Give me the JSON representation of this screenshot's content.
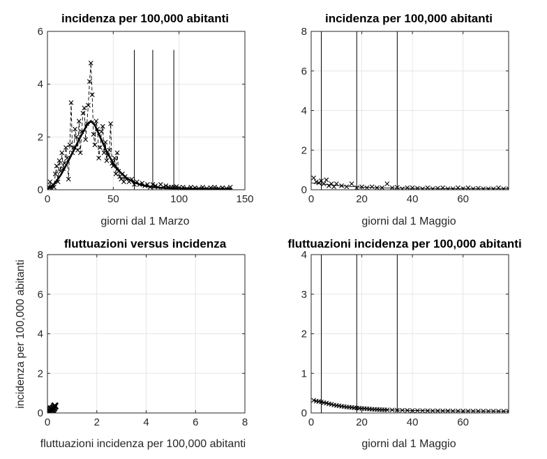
{
  "chart_data": [
    {
      "type": "line",
      "title": "incidenza per 100,000 abitanti",
      "xlabel": "giorni dal 1 Marzo",
      "ylabel": "",
      "xlim": [
        0,
        150
      ],
      "ylim": [
        0,
        6
      ],
      "xticks": [
        0,
        50,
        100,
        150
      ],
      "yticks": [
        0,
        2,
        4,
        6
      ],
      "grid": true,
      "vlines": [
        66,
        80,
        96
      ],
      "series": [
        {
          "style": "markers-x-dashed",
          "x": [
            1,
            2,
            3,
            4,
            5,
            6,
            7,
            8,
            9,
            10,
            11,
            12,
            13,
            14,
            15,
            16,
            17,
            18,
            19,
            20,
            21,
            22,
            23,
            24,
            25,
            26,
            27,
            28,
            29,
            30,
            31,
            32,
            33,
            34,
            35,
            36,
            37,
            38,
            39,
            40,
            41,
            42,
            43,
            44,
            45,
            46,
            47,
            48,
            49,
            50,
            51,
            52,
            53,
            54,
            55,
            56,
            57,
            58,
            59,
            60,
            62,
            64,
            66,
            68,
            70,
            72,
            74,
            76,
            78,
            80,
            82,
            84,
            86,
            88,
            90,
            92,
            94,
            96,
            98,
            100,
            103,
            106,
            109,
            112,
            115,
            118,
            121,
            124,
            127,
            130,
            133,
            136,
            139
          ],
          "y": [
            0.1,
            0.3,
            0.05,
            0.2,
            0.1,
            0.6,
            0.9,
            0.3,
            1.1,
            0.7,
            1.4,
            0.8,
            1.0,
            1.6,
            1.2,
            0.4,
            1.7,
            3.3,
            1.4,
            1.6,
            2.3,
            2.0,
            1.5,
            2.6,
            1.4,
            2.2,
            2.9,
            3.1,
            1.9,
            2.5,
            3.2,
            4.1,
            4.8,
            3.6,
            2.1,
            1.7,
            2.6,
            2.3,
            1.2,
            1.6,
            2.2,
            2.4,
            1.4,
            1.8,
            1.1,
            1.3,
            1.5,
            2.5,
            1.0,
            0.9,
            1.2,
            0.6,
            1.4,
            0.7,
            0.5,
            0.4,
            0.6,
            0.3,
            0.5,
            0.4,
            0.3,
            0.4,
            0.2,
            0.3,
            0.2,
            0.25,
            0.15,
            0.2,
            0.1,
            0.2,
            0.15,
            0.1,
            0.2,
            0.1,
            0.15,
            0.1,
            0.1,
            0.1,
            0.12,
            0.08,
            0.1,
            0.05,
            0.1,
            0.08,
            0.05,
            0.1,
            0.05,
            0.08,
            0.1,
            0.05,
            0.08,
            0.05,
            0.1
          ]
        },
        {
          "style": "thick-line",
          "x": [
            0,
            5,
            10,
            15,
            20,
            25,
            30,
            33,
            36,
            40,
            45,
            50,
            55,
            60,
            65,
            70,
            75,
            80,
            85,
            90,
            100,
            110,
            120,
            130,
            140
          ],
          "y": [
            0.02,
            0.2,
            0.55,
            1.0,
            1.5,
            2.0,
            2.45,
            2.6,
            2.45,
            2.0,
            1.45,
            1.0,
            0.68,
            0.45,
            0.3,
            0.2,
            0.14,
            0.1,
            0.08,
            0.06,
            0.05,
            0.04,
            0.04,
            0.03,
            0.03
          ]
        }
      ]
    },
    {
      "type": "line",
      "title": "incidenza per 100,000 abitanti",
      "xlabel": "giorni dal 1 Maggio",
      "ylabel": "",
      "xlim": [
        0,
        78
      ],
      "ylim": [
        0,
        8
      ],
      "xticks": [
        0,
        20,
        40,
        60
      ],
      "yticks": [
        0,
        2,
        4,
        6,
        8
      ],
      "grid": true,
      "vlines": [
        4,
        18,
        34
      ],
      "series": [
        {
          "style": "markers-x",
          "x": [
            1,
            2,
            3,
            4,
            5,
            6,
            7,
            8,
            9,
            10,
            12,
            14,
            16,
            18,
            20,
            22,
            24,
            26,
            28,
            30,
            32,
            34,
            36,
            38,
            40,
            42,
            44,
            46,
            48,
            50,
            52,
            54,
            56,
            58,
            60,
            62,
            64,
            66,
            68,
            70,
            72,
            74,
            76,
            78
          ],
          "y": [
            0.6,
            0.4,
            0.35,
            0.45,
            0.3,
            0.5,
            0.2,
            0.3,
            0.15,
            0.3,
            0.2,
            0.15,
            0.3,
            0.1,
            0.15,
            0.1,
            0.15,
            0.1,
            0.1,
            0.3,
            0.1,
            0.12,
            0.05,
            0.1,
            0.1,
            0.08,
            0.05,
            0.1,
            0.05,
            0.08,
            0.1,
            0.05,
            0.05,
            0.1,
            0.05,
            0.1,
            0.05,
            0.08,
            0.05,
            0.05,
            0.05,
            0.1,
            0.05,
            0.05
          ]
        },
        {
          "style": "thin-line",
          "x": [
            0,
            5,
            10,
            15,
            20,
            25,
            30,
            35,
            40,
            50,
            60,
            70,
            78
          ],
          "y": [
            0.35,
            0.28,
            0.22,
            0.17,
            0.13,
            0.11,
            0.09,
            0.08,
            0.07,
            0.06,
            0.05,
            0.05,
            0.05
          ]
        }
      ]
    },
    {
      "type": "scatter",
      "title": "fluttuazioni versus incidenza",
      "xlabel": "fluttuazioni incidenza per 100,000 abitanti",
      "ylabel": "incidenza per 100,000 abitanti",
      "xlim": [
        0,
        8
      ],
      "ylim": [
        0,
        8
      ],
      "xticks": [
        0,
        2,
        4,
        6,
        8
      ],
      "yticks": [
        0,
        2,
        4,
        6,
        8
      ],
      "grid": true,
      "vlines": [],
      "series": [
        {
          "style": "markers-x-bold",
          "x": [
            0.1,
            0.15,
            0.2,
            0.3,
            0.12,
            0.08,
            0.25
          ],
          "y": [
            0.1,
            0.2,
            0.15,
            0.35,
            0.05,
            0.12,
            0.25
          ]
        }
      ]
    },
    {
      "type": "line",
      "title": "fluttuazioni incidenza per 100,000 abitanti",
      "xlabel": "giorni dal 1 Maggio",
      "ylabel": "",
      "xlim": [
        0,
        78
      ],
      "ylim": [
        0,
        4
      ],
      "xticks": [
        0,
        20,
        40,
        60
      ],
      "yticks": [
        0,
        1,
        2,
        3,
        4
      ],
      "grid": true,
      "vlines": [
        4,
        18,
        34
      ],
      "series": [
        {
          "style": "markers-x-line",
          "x": [
            1,
            2,
            3,
            4,
            5,
            6,
            7,
            8,
            9,
            10,
            11,
            12,
            13,
            14,
            15,
            16,
            17,
            18,
            19,
            20,
            21,
            22,
            23,
            24,
            25,
            26,
            27,
            28,
            29,
            30,
            32,
            34,
            36,
            38,
            40,
            42,
            44,
            46,
            48,
            50,
            52,
            54,
            56,
            58,
            60,
            62,
            64,
            66,
            68,
            70,
            72,
            74,
            76,
            78
          ],
          "y": [
            0.32,
            0.3,
            0.29,
            0.28,
            0.26,
            0.25,
            0.23,
            0.22,
            0.2,
            0.19,
            0.18,
            0.17,
            0.16,
            0.15,
            0.145,
            0.14,
            0.13,
            0.125,
            0.12,
            0.115,
            0.11,
            0.105,
            0.1,
            0.095,
            0.09,
            0.088,
            0.085,
            0.082,
            0.08,
            0.078,
            0.075,
            0.07,
            0.068,
            0.065,
            0.062,
            0.06,
            0.058,
            0.056,
            0.055,
            0.054,
            0.053,
            0.052,
            0.051,
            0.05,
            0.05,
            0.049,
            0.049,
            0.048,
            0.048,
            0.047,
            0.047,
            0.046,
            0.046,
            0.045
          ]
        }
      ]
    }
  ]
}
